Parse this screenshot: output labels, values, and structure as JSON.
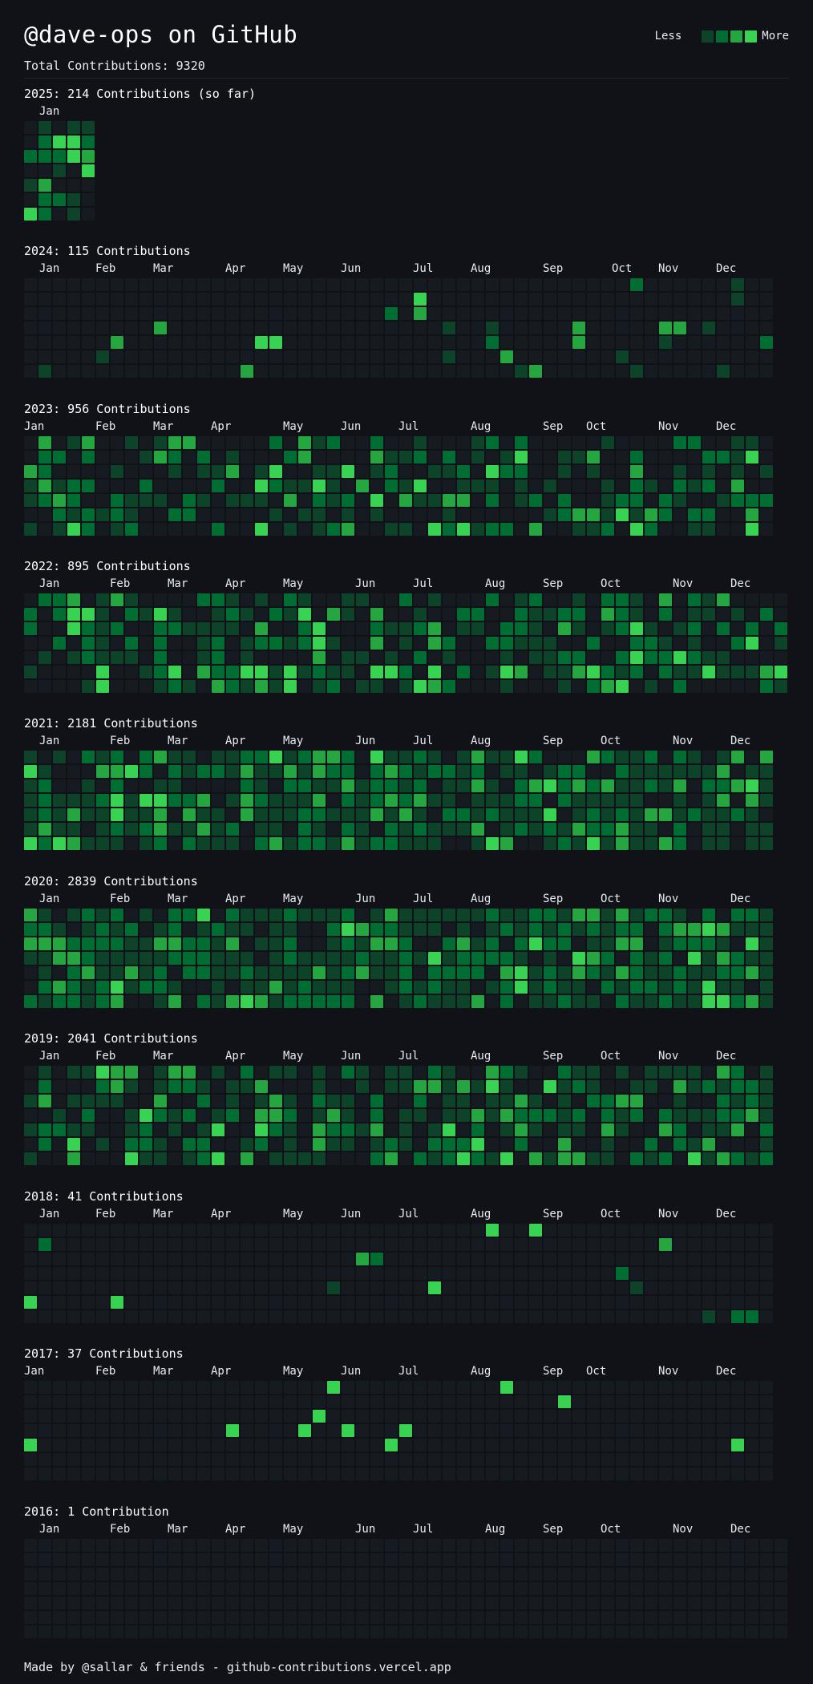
{
  "header": {
    "title": "@dave-ops on GitHub",
    "total": "Total Contributions: 9320"
  },
  "legend": {
    "less": "Less",
    "more": "More",
    "levels": [
      "#161b22",
      "#0d4429",
      "#006d32",
      "#26a641",
      "#39d353"
    ]
  },
  "months": [
    "Jan",
    "Feb",
    "Mar",
    "Apr",
    "May",
    "Jun",
    "Jul",
    "Aug",
    "Sep",
    "Oct",
    "Nov",
    "Dec"
  ],
  "years": [
    {
      "heading": "2025: 214 Contributions (so far)",
      "weeks": 5,
      "month_labels": [
        "Jan"
      ]
    },
    {
      "heading": "2024: 115 Contributions",
      "weeks": 52,
      "month_labels": [
        "Jan",
        "Feb",
        "Mar",
        "Apr",
        "May",
        "Jun",
        "Jul",
        "Aug",
        "Sep",
        "Oct",
        "Nov",
        "Dec"
      ]
    },
    {
      "heading": "2023: 956 Contributions",
      "weeks": 52,
      "month_labels": [
        "Jan",
        "Feb",
        "Mar",
        "Apr",
        "May",
        "Jun",
        "Jul",
        "Aug",
        "Sep",
        "Oct",
        "Nov",
        "Dec"
      ]
    },
    {
      "heading": "2022: 895 Contributions",
      "weeks": 53,
      "month_labels": [
        "Jan",
        "Feb",
        "Mar",
        "Apr",
        "May",
        "Jun",
        "Jul",
        "Aug",
        "Sep",
        "Oct",
        "Nov",
        "Dec"
      ]
    },
    {
      "heading": "2021: 2181 Contributions",
      "weeks": 52,
      "month_labels": [
        "Jan",
        "Feb",
        "Mar",
        "Apr",
        "May",
        "Jun",
        "Jul",
        "Aug",
        "Sep",
        "Oct",
        "Nov",
        "Dec"
      ]
    },
    {
      "heading": "2020: 2839 Contributions",
      "weeks": 52,
      "month_labels": [
        "Jan",
        "Feb",
        "Mar",
        "Apr",
        "May",
        "Jun",
        "Jul",
        "Aug",
        "Sep",
        "Oct",
        "Nov",
        "Dec"
      ]
    },
    {
      "heading": "2019: 2041 Contributions",
      "weeks": 52,
      "month_labels": [
        "Jan",
        "Feb",
        "Mar",
        "Apr",
        "May",
        "Jun",
        "Jul",
        "Aug",
        "Sep",
        "Oct",
        "Nov",
        "Dec"
      ]
    },
    {
      "heading": "2018: 41 Contributions",
      "weeks": 52,
      "month_labels": [
        "Jan",
        "Feb",
        "Mar",
        "Apr",
        "May",
        "Jun",
        "Jul",
        "Aug",
        "Sep",
        "Oct",
        "Nov",
        "Dec"
      ]
    },
    {
      "heading": "2017: 37 Contributions",
      "weeks": 52,
      "month_labels": [
        "Jan",
        "Feb",
        "Mar",
        "Apr",
        "May",
        "Jun",
        "Jul",
        "Aug",
        "Sep",
        "Oct",
        "Nov",
        "Dec"
      ]
    },
    {
      "heading": "2016: 1 Contribution",
      "weeks": 53,
      "month_labels": [
        "Jan",
        "Feb",
        "Mar",
        "Apr",
        "May",
        "Jun",
        "Jul",
        "Aug",
        "Sep",
        "Oct",
        "Nov",
        "Dec"
      ]
    }
  ],
  "footer": "Made by @sallar & friends - github-contributions.vercel.app"
}
